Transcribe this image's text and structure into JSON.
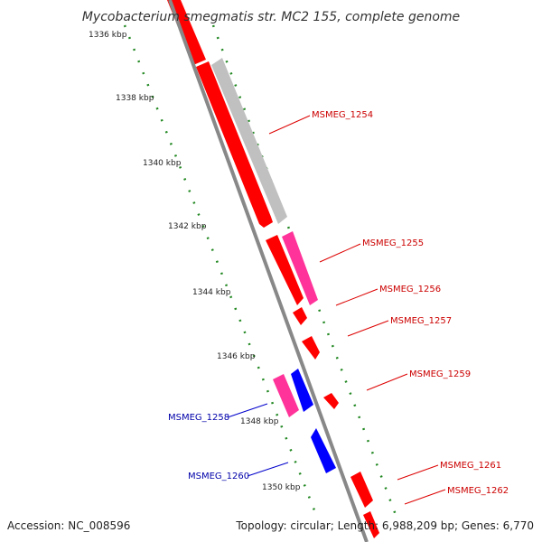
{
  "title": "Mycobacterium smegmatis str. MC2 155, complete genome",
  "footer": {
    "accession": "Accession: NC_008596",
    "summary": "Topology: circular; Length: 6,988,209 bp; Genes: 6,770"
  },
  "colors": {
    "backbone": "#888888",
    "forward_gene": "#ff0000",
    "reverse_gene": "#0000ff",
    "pseudo_gene": "#c0c0c0",
    "rna_gene": "#ff3399",
    "ticks": "#228822",
    "forward_label": "#cc0000",
    "reverse_label": "#0000aa"
  },
  "scale_labels": [
    "1336 kbp",
    "1338 kbp",
    "1340 kbp",
    "1342 kbp",
    "1344 kbp",
    "1346 kbp",
    "1348 kbp",
    "1350 kbp"
  ],
  "genes": {
    "MSMEG_1254": "MSMEG_1254",
    "MSMEG_1255": "MSMEG_1255",
    "MSMEG_1256": "MSMEG_1256",
    "MSMEG_1257": "MSMEG_1257",
    "MSMEG_1258": "MSMEG_1258",
    "MSMEG_1259": "MSMEG_1259",
    "MSMEG_1260": "MSMEG_1260",
    "MSMEG_1261": "MSMEG_1261",
    "MSMEG_1262": "MSMEG_1262"
  }
}
